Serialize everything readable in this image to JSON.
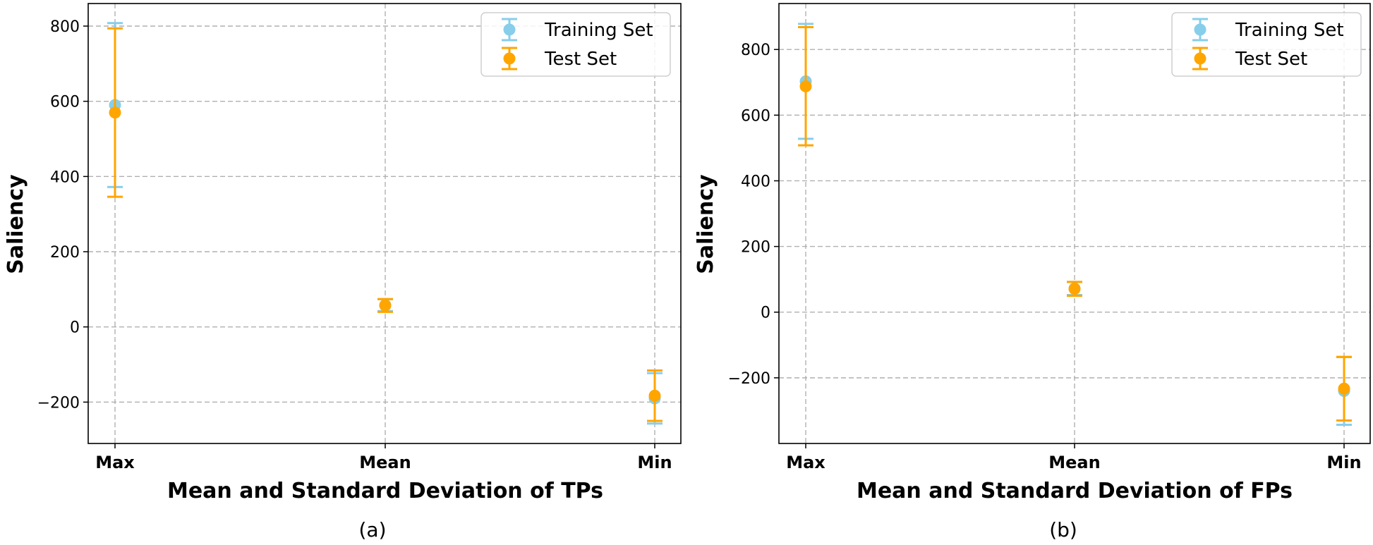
{
  "colors": {
    "training": "#87ceeb",
    "test": "#ffa500"
  },
  "chart_data": [
    {
      "type": "scatter",
      "panel": "(a)",
      "xlabel": "Mean and Standard Deviation of TPs",
      "ylabel": "Saliency",
      "categories": [
        "Max",
        "Mean",
        "Min"
      ],
      "ylim": [
        -310,
        860
      ],
      "yticks": [
        -200,
        0,
        200,
        400,
        600,
        800
      ],
      "ytick_labels": [
        "−200",
        "0",
        "200",
        "400",
        "600",
        "800"
      ],
      "grid": true,
      "legend": "top-right",
      "series": [
        {
          "name": "Training Set",
          "values": [
            590,
            58,
            -190
          ],
          "std": [
            218,
            16,
            67
          ]
        },
        {
          "name": "Test Set",
          "values": [
            570,
            57,
            -183
          ],
          "std": [
            224,
            17,
            67
          ]
        }
      ]
    },
    {
      "type": "scatter",
      "panel": "(b)",
      "xlabel": "Mean and Standard Deviation of FPs",
      "ylabel": "Saliency",
      "categories": [
        "Max",
        "Mean",
        "Min"
      ],
      "ylim": [
        -400,
        940
      ],
      "yticks": [
        -200,
        0,
        200,
        400,
        600,
        800
      ],
      "ytick_labels": [
        "−200",
        "0",
        "200",
        "400",
        "600",
        "800"
      ],
      "grid": true,
      "legend": "top-right",
      "series": [
        {
          "name": "Training Set",
          "values": [
            703,
            72,
            -240
          ],
          "std": [
            175,
            20,
            103
          ]
        },
        {
          "name": "Test Set",
          "values": [
            688,
            71,
            -233
          ],
          "std": [
            180,
            21,
            97
          ]
        }
      ]
    }
  ]
}
